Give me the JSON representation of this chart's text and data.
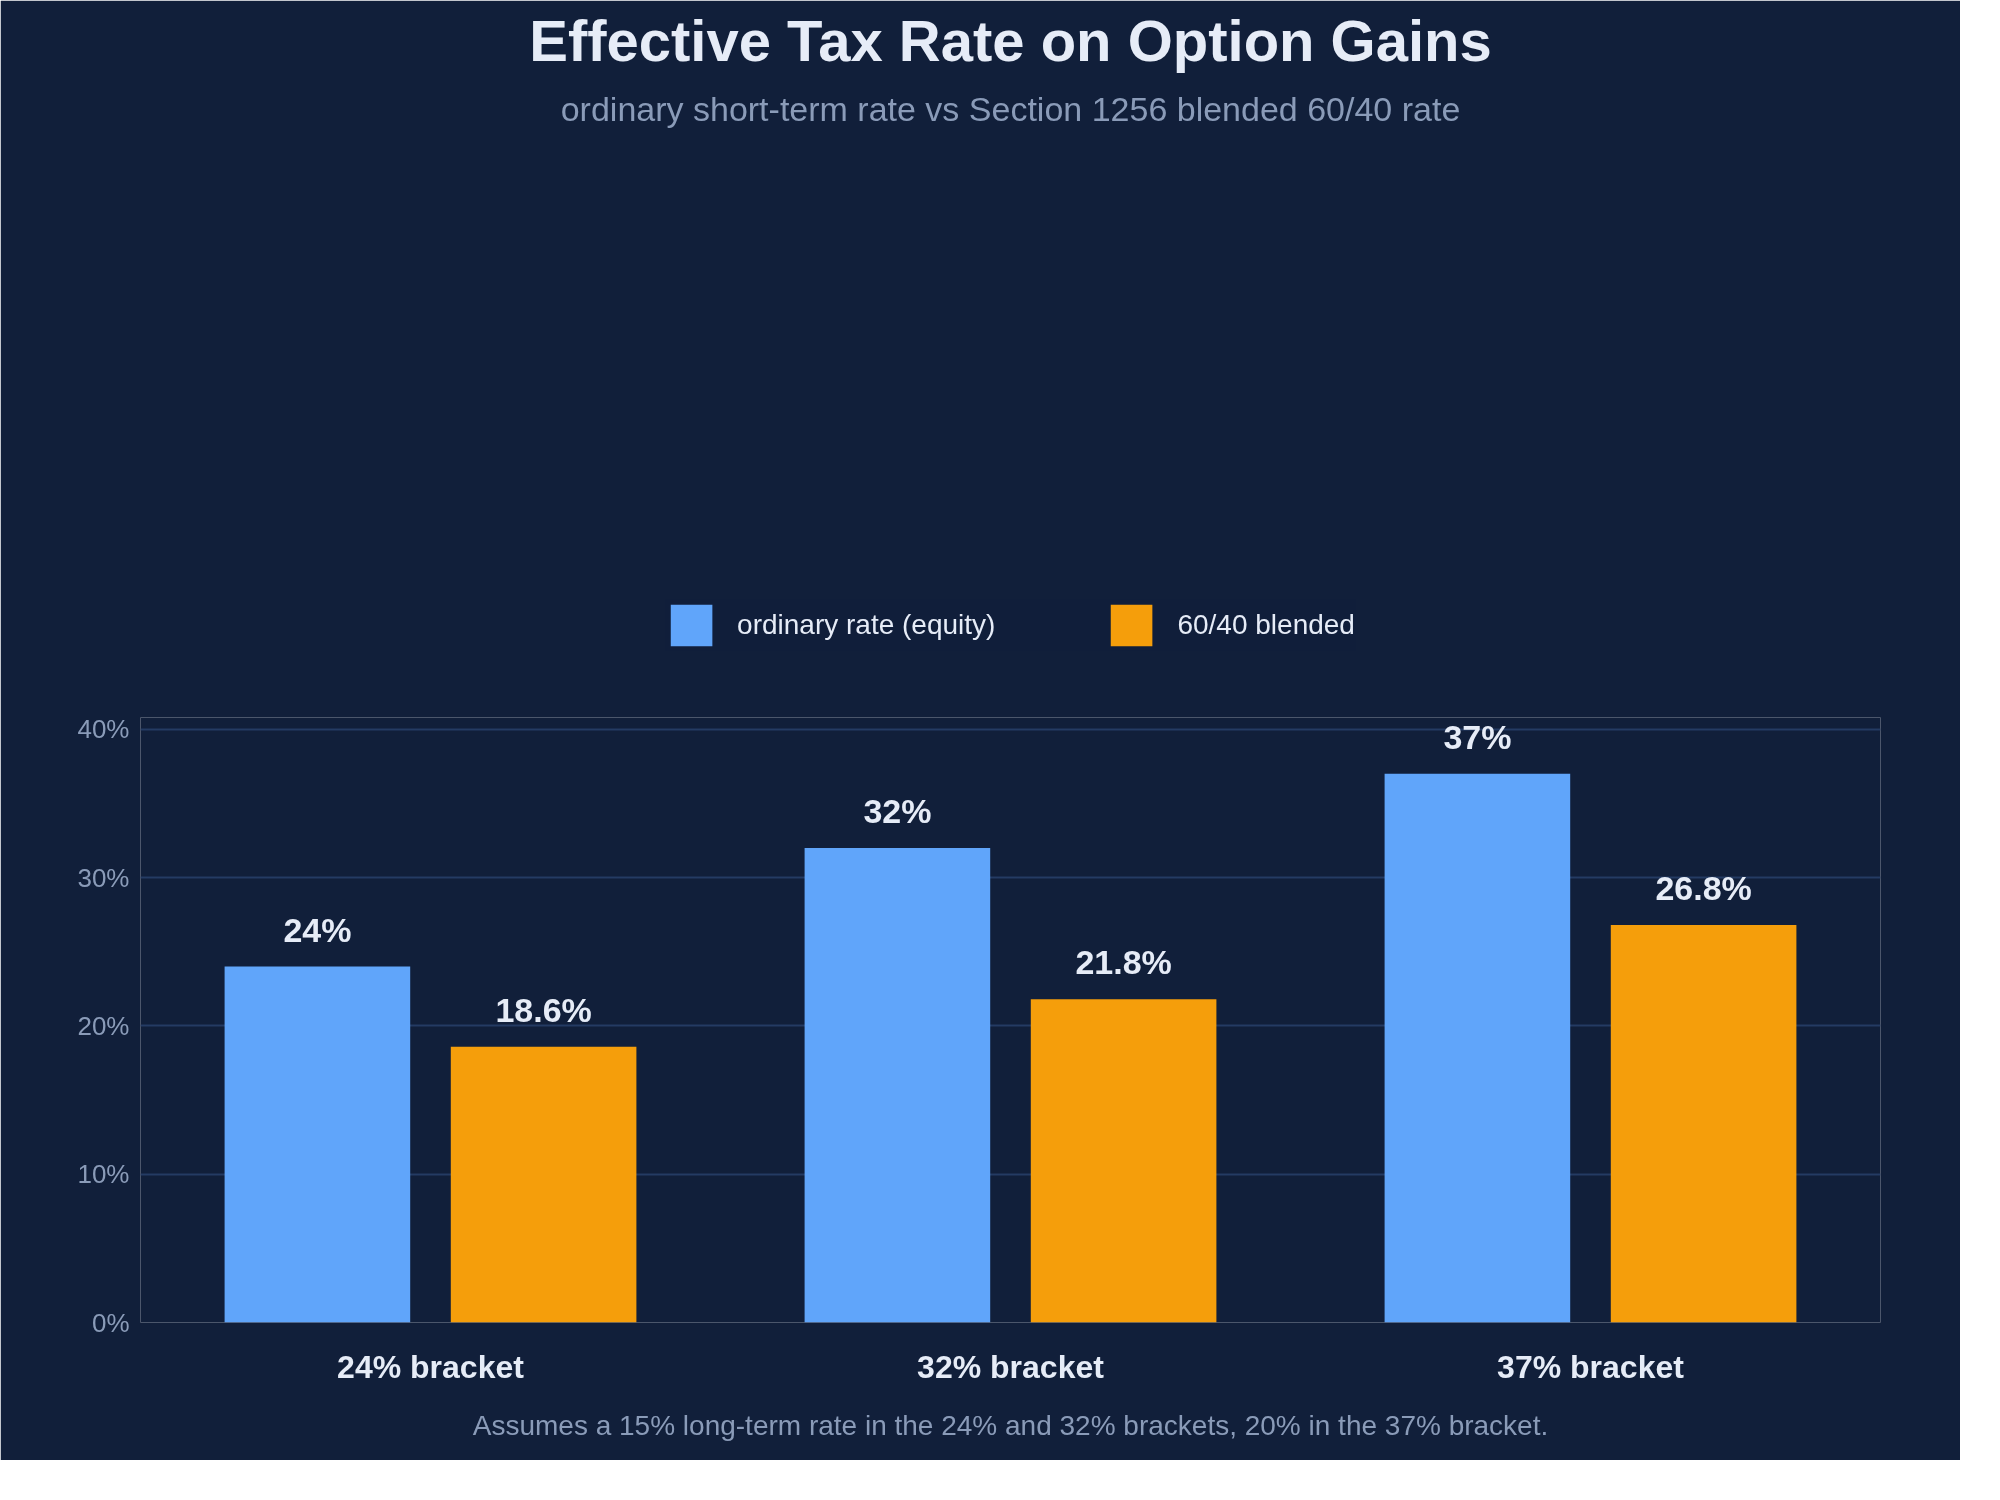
{
  "chart_data": {
    "type": "bar",
    "title": "Effective Tax Rate on Option Gains",
    "subtitle": "ordinary short-term rate vs Section 1256 blended 60/40 rate",
    "categories": [
      "24% bracket",
      "32% bracket",
      "37% bracket"
    ],
    "series": [
      {
        "name": "ordinary rate (equity)",
        "color": "#60a5fa",
        "values": [
          24,
          32,
          37
        ],
        "value_labels": [
          "24%",
          "32%",
          "37%"
        ]
      },
      {
        "name": "60/40 blended",
        "color": "#f59e0b",
        "values": [
          18.6,
          21.8,
          26.8
        ],
        "value_labels": [
          "18.6%",
          "21.8%",
          "26.8%"
        ]
      }
    ],
    "ylim": [
      0,
      40
    ],
    "yticks": [
      {
        "value": 0,
        "label": "0%"
      },
      {
        "value": 10,
        "label": "10%"
      },
      {
        "value": 20,
        "label": "20%"
      },
      {
        "value": 30,
        "label": "30%"
      },
      {
        "value": 40,
        "label": "40%"
      }
    ],
    "grid": "y",
    "legend": "top",
    "annotations": [
      "Assumes a 15% long-term rate in the 24% and 32% brackets, 20% in the 37% bracket."
    ]
  }
}
